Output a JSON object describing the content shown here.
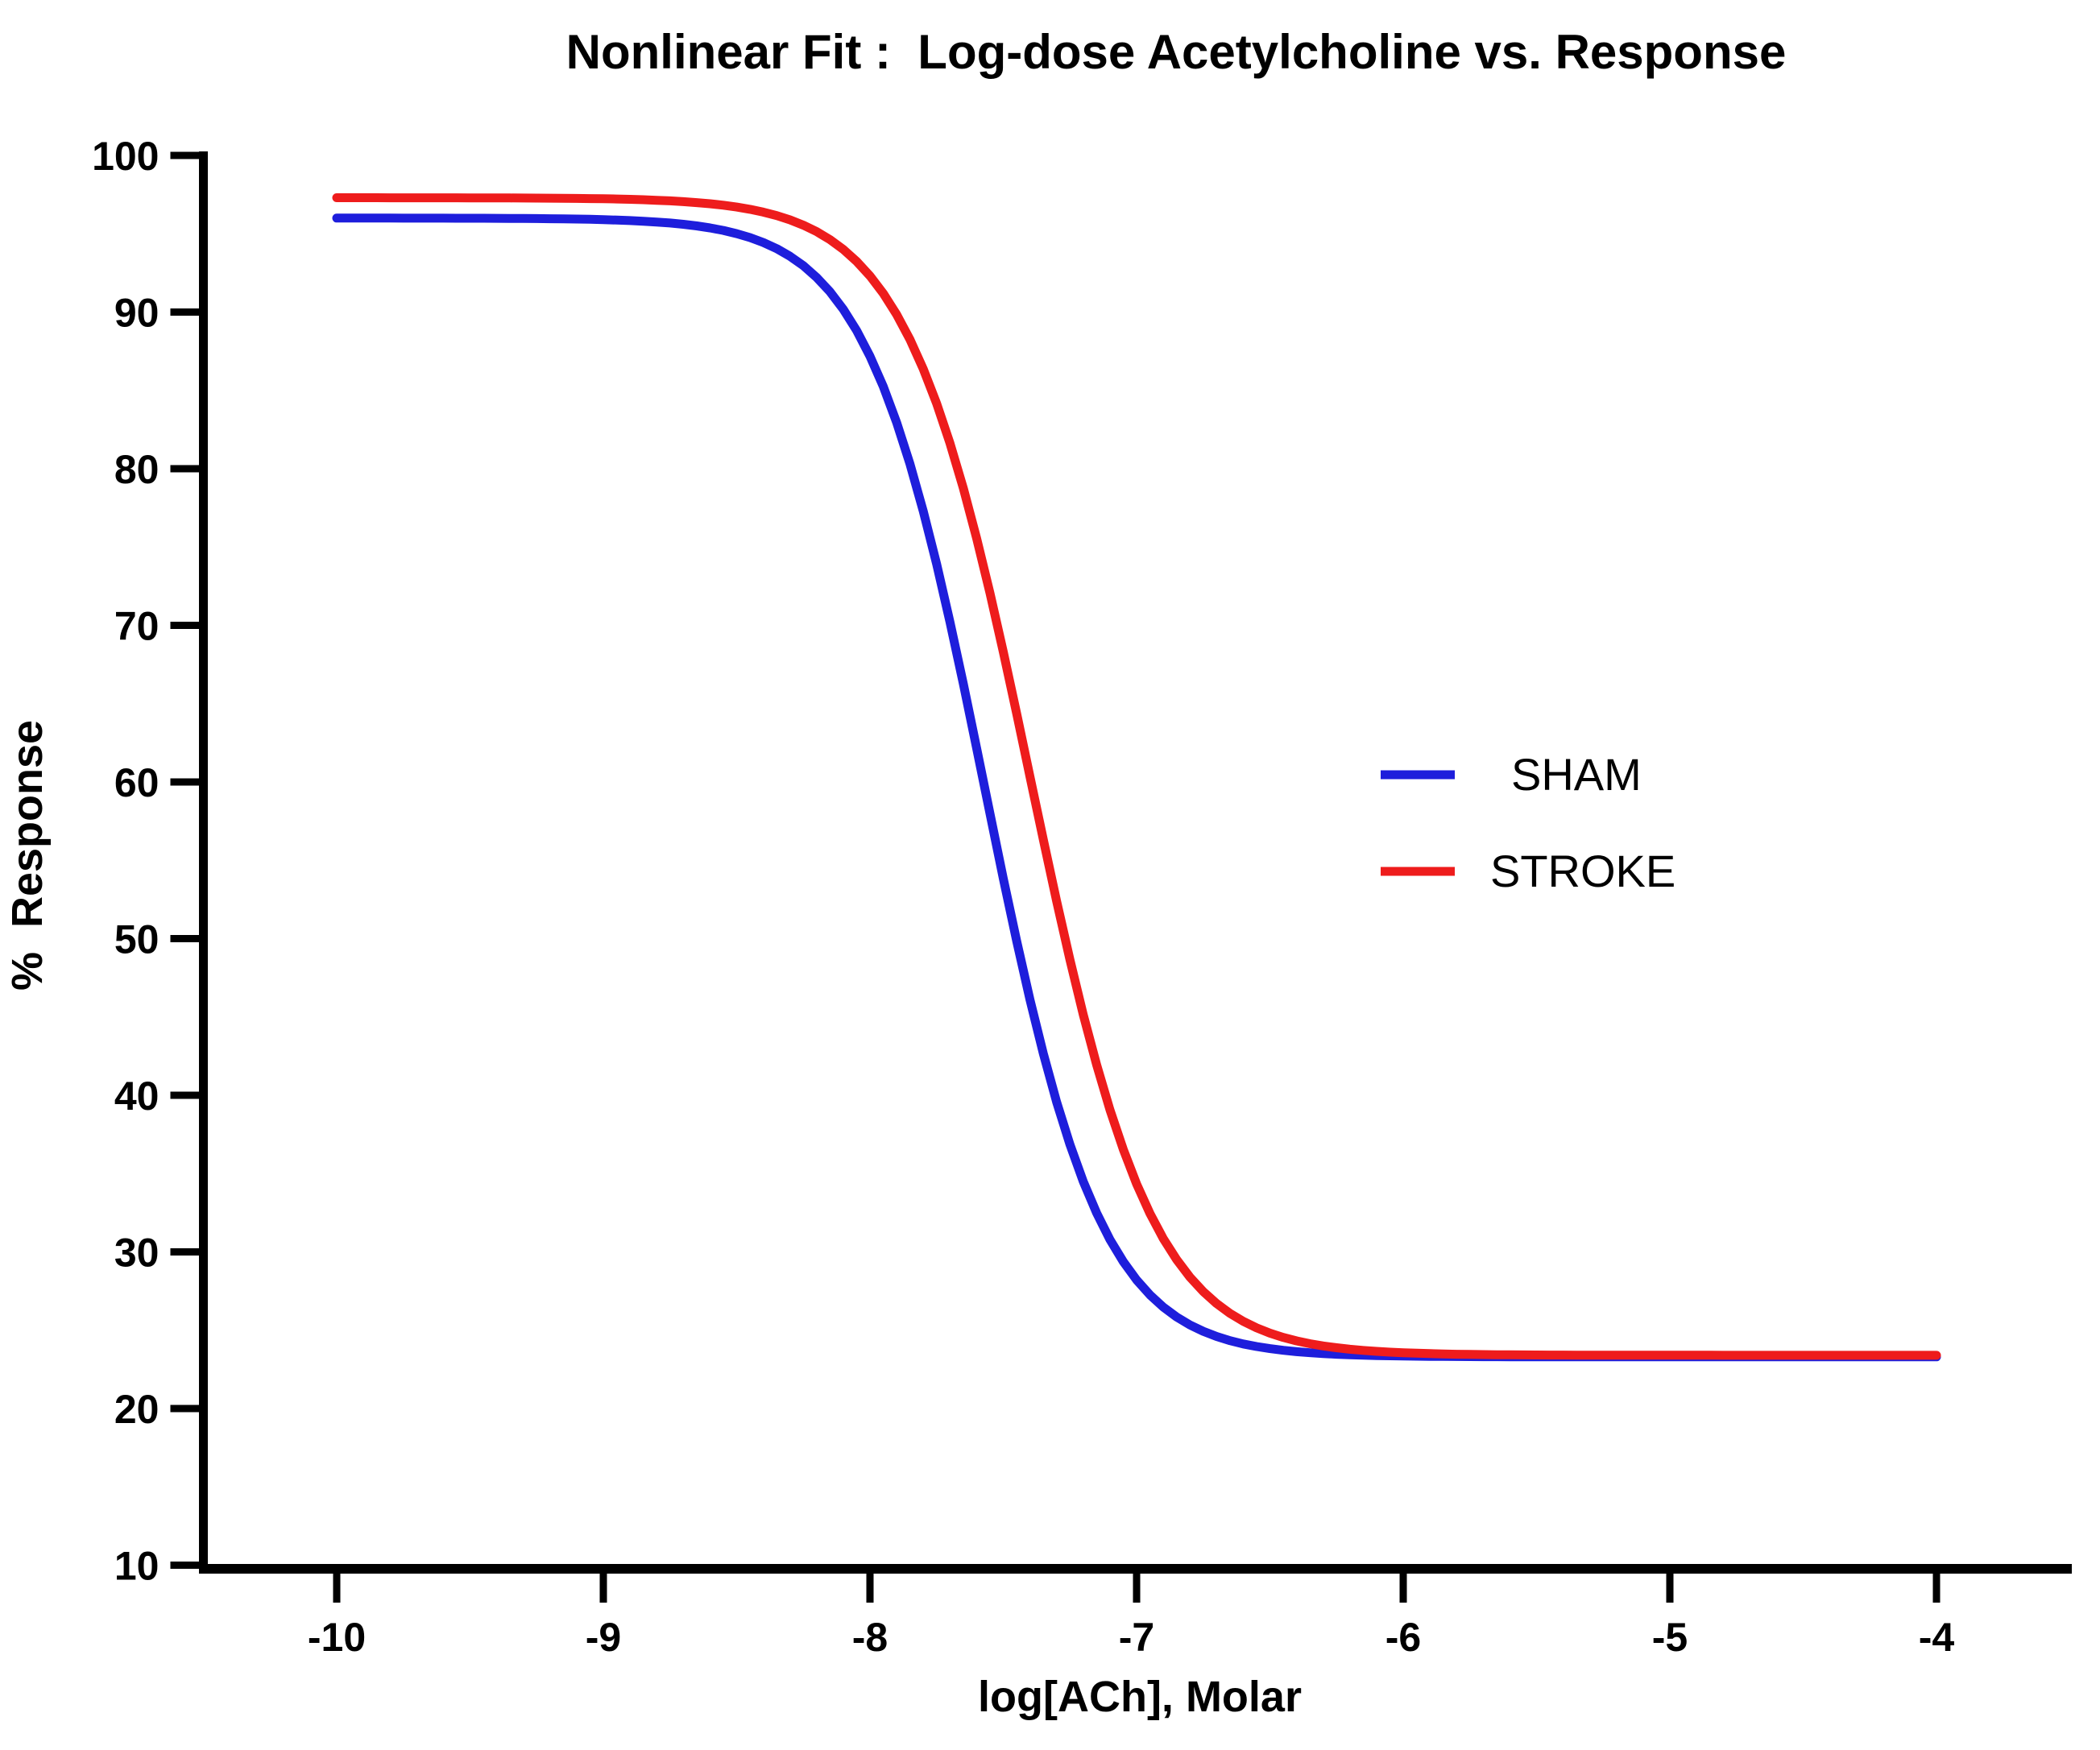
{
  "chart_data": {
    "type": "line",
    "title": "Nonlinear Fit :  Log-dose Acetylcholine vs. Response",
    "xlabel": "log[ACh], Molar",
    "ylabel": "%  Response",
    "x_axis": {
      "scale": "log-molar",
      "ticks": [
        -10,
        -9,
        -8,
        -7,
        -6,
        -5,
        -4
      ],
      "tick_labels": [
        "-10",
        "-9",
        "-8",
        "-7",
        "-6",
        "-5",
        "-4"
      ],
      "curve_domain": [
        -10,
        -4
      ]
    },
    "y_axis": {
      "min": 10,
      "max": 100,
      "ticks": [
        100,
        90,
        80,
        70,
        60,
        50,
        40,
        30,
        20,
        10
      ],
      "tick_labels": [
        "100",
        "90",
        "80",
        "70",
        "60",
        "50",
        "40",
        "30",
        "20",
        "10"
      ]
    },
    "grid": false,
    "axis_color": "#000000",
    "background_color": "#ffffff",
    "legend": {
      "position": "middle-right",
      "entries": [
        "SHAM",
        "STROKE"
      ]
    },
    "series": [
      {
        "name": "SHAM",
        "color": "#1E1EDC",
        "fit_model": "sigmoidal dose-response (descending)",
        "top_plateau": 96.0,
        "bottom_plateau": 23.3,
        "logIC50": -7.57,
        "hill_slope": 2.0,
        "x": [
          -10.0,
          -9.8,
          -9.6,
          -9.4,
          -9.2,
          -9.0,
          -8.8,
          -8.6,
          -8.4,
          -8.2,
          -8.0,
          -7.8,
          -7.6,
          -7.4,
          -7.2,
          -7.0,
          -6.8,
          -6.6,
          -6.4,
          -6.2,
          -6.0,
          -5.8,
          -5.6,
          -5.4,
          -5.2,
          -5.0,
          -4.8,
          -4.6,
          -4.4,
          -4.2,
          -4.0
        ],
        "y": [
          96.0,
          96.0,
          96.0,
          96.0,
          96.0,
          95.9,
          95.8,
          95.4,
          94.4,
          92.2,
          87.2,
          77.3,
          62.2,
          46.1,
          34.5,
          28.2,
          25.3,
          24.1,
          23.6,
          23.4,
          23.4,
          23.3,
          23.3,
          23.3,
          23.3,
          23.3,
          23.3,
          23.3,
          23.3,
          23.3,
          23.3
        ]
      },
      {
        "name": "STROKE",
        "color": "#EE1C1C",
        "fit_model": "sigmoidal dose-response (descending)",
        "top_plateau": 97.3,
        "bottom_plateau": 23.4,
        "logIC50": -7.4,
        "hill_slope": 1.9,
        "x": [
          -10.0,
          -9.8,
          -9.6,
          -9.4,
          -9.2,
          -9.0,
          -8.8,
          -8.6,
          -8.4,
          -8.2,
          -8.0,
          -7.8,
          -7.6,
          -7.4,
          -7.2,
          -7.0,
          -6.8,
          -6.6,
          -6.4,
          -6.2,
          -6.0,
          -5.8,
          -5.6,
          -5.4,
          -5.2,
          -5.0,
          -4.8,
          -4.6,
          -4.4,
          -4.2,
          -4.0
        ],
        "y": [
          97.3,
          97.3,
          97.3,
          97.3,
          97.3,
          97.2,
          97.1,
          96.9,
          96.4,
          95.1,
          92.3,
          86.4,
          75.6,
          60.4,
          45.1,
          34.3,
          28.4,
          25.6,
          24.3,
          23.8,
          23.6,
          23.5,
          23.4,
          23.4,
          23.4,
          23.4,
          23.4,
          23.4,
          23.4,
          23.4,
          23.4
        ]
      }
    ]
  }
}
